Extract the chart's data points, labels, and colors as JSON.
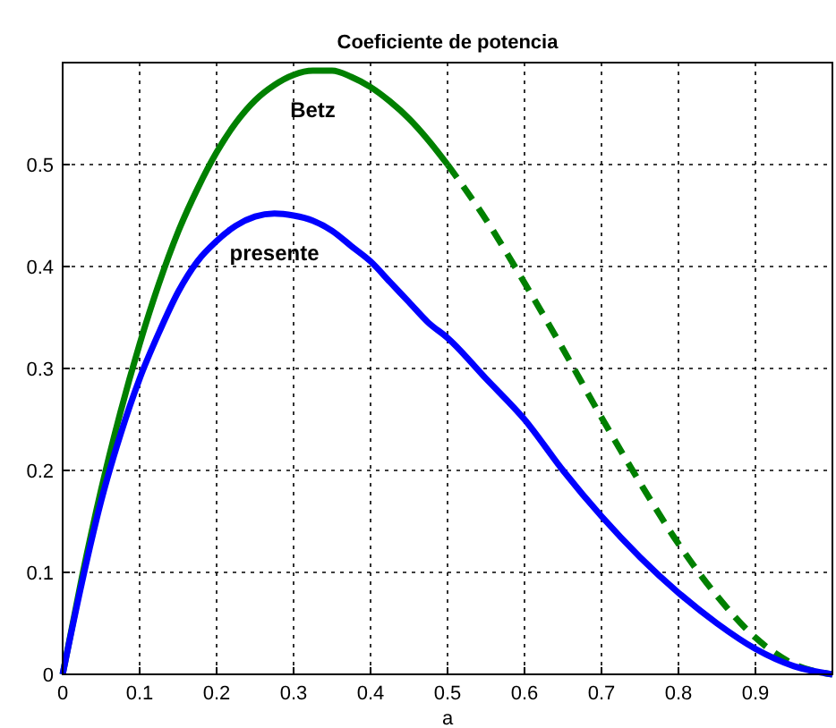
{
  "chart_data": {
    "type": "line",
    "title": "Coeficiente de potencia",
    "xlabel": "a",
    "xlim": [
      0,
      1
    ],
    "ylim": [
      0,
      0.6
    ],
    "xticks": [
      0,
      0.1,
      0.2,
      0.3,
      0.4,
      0.5,
      0.6,
      0.7,
      0.8,
      0.9,
      {
        "value": 1,
        "label": null
      }
    ],
    "yticks": [
      0,
      0.1,
      0.2,
      0.3,
      0.4,
      0.5,
      {
        "value": 0.6,
        "label": null
      }
    ],
    "grid": true,
    "series": [
      {
        "name": "Betz",
        "color": "#008000",
        "line_style": "solid",
        "x": [
          0,
          0.025,
          0.05,
          0.075,
          0.1,
          0.125,
          0.15,
          0.175,
          0.2,
          0.225,
          0.25,
          0.275,
          0.3,
          0.325,
          0.35,
          0.375,
          0.4,
          0.425,
          0.45,
          0.475,
          0.5
        ],
        "values": [
          0,
          0.095,
          0.181,
          0.257,
          0.324,
          0.383,
          0.434,
          0.476,
          0.512,
          0.541,
          0.563,
          0.578,
          0.588,
          0.592,
          0.592,
          0.586,
          0.576,
          0.562,
          0.545,
          0.524,
          0.5
        ]
      },
      {
        "color": "#008000",
        "line_style": "dashed",
        "x": [
          0.5,
          0.55,
          0.6,
          0.65,
          0.7,
          0.75,
          0.8,
          0.85,
          0.9,
          0.95,
          1
        ],
        "values": [
          0.5,
          0.446,
          0.384,
          0.319,
          0.252,
          0.188,
          0.128,
          0.077,
          0.036,
          0.01,
          0
        ]
      },
      {
        "name": "presente",
        "color": "#0000ff",
        "line_style": "solid",
        "x": [
          0,
          0.025,
          0.05,
          0.075,
          0.1,
          0.125,
          0.15,
          0.175,
          0.2,
          0.225,
          0.25,
          0.275,
          0.3,
          0.325,
          0.35,
          0.375,
          0.4,
          0.425,
          0.45,
          0.475,
          0.5,
          0.55,
          0.6,
          0.65,
          0.7,
          0.75,
          0.8,
          0.85,
          0.9,
          0.95,
          1
        ],
        "values": [
          0,
          0.09,
          0.17,
          0.235,
          0.29,
          0.335,
          0.375,
          0.405,
          0.425,
          0.44,
          0.449,
          0.452,
          0.45,
          0.445,
          0.435,
          0.42,
          0.405,
          0.385,
          0.365,
          0.345,
          0.33,
          0.29,
          0.25,
          0.2,
          0.155,
          0.115,
          0.08,
          0.05,
          0.025,
          0.008,
          0
        ]
      }
    ]
  }
}
